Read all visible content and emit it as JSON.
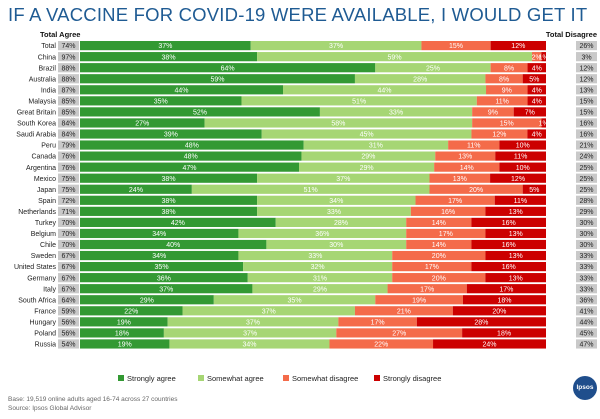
{
  "chart_data": {
    "type": "bar",
    "title": "IF A VACCINE FOR COVID-19 WERE AVAILABLE, I WOULD GET IT",
    "col_left": "Total Agree",
    "col_right": "Total Disagree",
    "colors": {
      "strongly_agree": "#339933",
      "somewhat_agree": "#a6d674",
      "somewhat_disagree": "#f46b4a",
      "strongly_disagree": "#cc0000",
      "summary_bg": "#c9c9c9"
    },
    "legend": [
      "Strongly agree",
      "Somewhat agree",
      "Somewhat disagree",
      "Strongly disagree"
    ],
    "rows": [
      {
        "country": "Total",
        "total_agree": "74%",
        "strongly_agree": 37,
        "somewhat_agree": 37,
        "somewhat_disagree": 15,
        "strongly_disagree": 12,
        "total_disagree": "26%"
      },
      {
        "country": "China",
        "total_agree": "97%",
        "strongly_agree": 38,
        "somewhat_agree": 59,
        "somewhat_disagree": 2,
        "strongly_disagree": 1,
        "total_disagree": "3%"
      },
      {
        "country": "Brazil",
        "total_agree": "88%",
        "strongly_agree": 64,
        "somewhat_agree": 25,
        "somewhat_disagree": 8,
        "strongly_disagree": 4,
        "total_disagree": "12%"
      },
      {
        "country": "Australia",
        "total_agree": "88%",
        "strongly_agree": 59,
        "somewhat_agree": 28,
        "somewhat_disagree": 8,
        "strongly_disagree": 5,
        "total_disagree": "12%"
      },
      {
        "country": "India",
        "total_agree": "87%",
        "strongly_agree": 44,
        "somewhat_agree": 44,
        "somewhat_disagree": 9,
        "strongly_disagree": 4,
        "total_disagree": "13%"
      },
      {
        "country": "Malaysia",
        "total_agree": "85%",
        "strongly_agree": 35,
        "somewhat_agree": 51,
        "somewhat_disagree": 11,
        "strongly_disagree": 4,
        "total_disagree": "15%"
      },
      {
        "country": "Great Britain",
        "total_agree": "85%",
        "strongly_agree": 52,
        "somewhat_agree": 33,
        "somewhat_disagree": 9,
        "strongly_disagree": 7,
        "total_disagree": "15%"
      },
      {
        "country": "South Korea",
        "total_agree": "84%",
        "strongly_agree": 27,
        "somewhat_agree": 58,
        "somewhat_disagree": 15,
        "strongly_disagree": 1,
        "total_disagree": "16%"
      },
      {
        "country": "Saudi Arabia",
        "total_agree": "84%",
        "strongly_agree": 39,
        "somewhat_agree": 45,
        "somewhat_disagree": 12,
        "strongly_disagree": 4,
        "total_disagree": "16%"
      },
      {
        "country": "Peru",
        "total_agree": "79%",
        "strongly_agree": 48,
        "somewhat_agree": 31,
        "somewhat_disagree": 11,
        "strongly_disagree": 10,
        "total_disagree": "21%"
      },
      {
        "country": "Canada",
        "total_agree": "76%",
        "strongly_agree": 48,
        "somewhat_agree": 29,
        "somewhat_disagree": 13,
        "strongly_disagree": 11,
        "total_disagree": "24%"
      },
      {
        "country": "Argentina",
        "total_agree": "76%",
        "strongly_agree": 47,
        "somewhat_agree": 29,
        "somewhat_disagree": 14,
        "strongly_disagree": 10,
        "total_disagree": "25%"
      },
      {
        "country": "Mexico",
        "total_agree": "75%",
        "strongly_agree": 38,
        "somewhat_agree": 37,
        "somewhat_disagree": 13,
        "strongly_disagree": 12,
        "total_disagree": "25%"
      },
      {
        "country": "Japan",
        "total_agree": "75%",
        "strongly_agree": 24,
        "somewhat_agree": 51,
        "somewhat_disagree": 20,
        "strongly_disagree": 5,
        "total_disagree": "25%"
      },
      {
        "country": "Spain",
        "total_agree": "72%",
        "strongly_agree": 38,
        "somewhat_agree": 34,
        "somewhat_disagree": 17,
        "strongly_disagree": 11,
        "total_disagree": "28%"
      },
      {
        "country": "Netherlands",
        "total_agree": "71%",
        "strongly_agree": 38,
        "somewhat_agree": 33,
        "somewhat_disagree": 16,
        "strongly_disagree": 13,
        "total_disagree": "29%"
      },
      {
        "country": "Turkey",
        "total_agree": "70%",
        "strongly_agree": 42,
        "somewhat_agree": 28,
        "somewhat_disagree": 14,
        "strongly_disagree": 16,
        "total_disagree": "30%"
      },
      {
        "country": "Belgium",
        "total_agree": "70%",
        "strongly_agree": 34,
        "somewhat_agree": 36,
        "somewhat_disagree": 17,
        "strongly_disagree": 13,
        "total_disagree": "30%"
      },
      {
        "country": "Chile",
        "total_agree": "70%",
        "strongly_agree": 40,
        "somewhat_agree": 30,
        "somewhat_disagree": 14,
        "strongly_disagree": 16,
        "total_disagree": "30%"
      },
      {
        "country": "Sweden",
        "total_agree": "67%",
        "strongly_agree": 34,
        "somewhat_agree": 33,
        "somewhat_disagree": 20,
        "strongly_disagree": 13,
        "total_disagree": "33%"
      },
      {
        "country": "United States",
        "total_agree": "67%",
        "strongly_agree": 35,
        "somewhat_agree": 32,
        "somewhat_disagree": 17,
        "strongly_disagree": 16,
        "total_disagree": "33%"
      },
      {
        "country": "Germany",
        "total_agree": "67%",
        "strongly_agree": 36,
        "somewhat_agree": 31,
        "somewhat_disagree": 20,
        "strongly_disagree": 13,
        "total_disagree": "33%"
      },
      {
        "country": "Italy",
        "total_agree": "67%",
        "strongly_agree": 37,
        "somewhat_agree": 29,
        "somewhat_disagree": 17,
        "strongly_disagree": 17,
        "total_disagree": "33%"
      },
      {
        "country": "South Africa",
        "total_agree": "64%",
        "strongly_agree": 29,
        "somewhat_agree": 35,
        "somewhat_disagree": 19,
        "strongly_disagree": 18,
        "total_disagree": "36%"
      },
      {
        "country": "France",
        "total_agree": "59%",
        "strongly_agree": 22,
        "somewhat_agree": 37,
        "somewhat_disagree": 21,
        "strongly_disagree": 20,
        "total_disagree": "41%"
      },
      {
        "country": "Hungary",
        "total_agree": "56%",
        "strongly_agree": 19,
        "somewhat_agree": 37,
        "somewhat_disagree": 17,
        "strongly_disagree": 28,
        "total_disagree": "44%"
      },
      {
        "country": "Poland",
        "total_agree": "56%",
        "strongly_agree": 18,
        "somewhat_agree": 37,
        "somewhat_disagree": 27,
        "strongly_disagree": 18,
        "total_disagree": "45%"
      },
      {
        "country": "Russia",
        "total_agree": "54%",
        "strongly_agree": 19,
        "somewhat_agree": 34,
        "somewhat_disagree": 22,
        "strongly_disagree": 24,
        "total_disagree": "47%"
      }
    ]
  },
  "footnote": "Base: 19,519 online adults aged 16-74 across 27 countries",
  "source": "Source: Ipsos Global Advisor",
  "logo_text": "Ipsos"
}
